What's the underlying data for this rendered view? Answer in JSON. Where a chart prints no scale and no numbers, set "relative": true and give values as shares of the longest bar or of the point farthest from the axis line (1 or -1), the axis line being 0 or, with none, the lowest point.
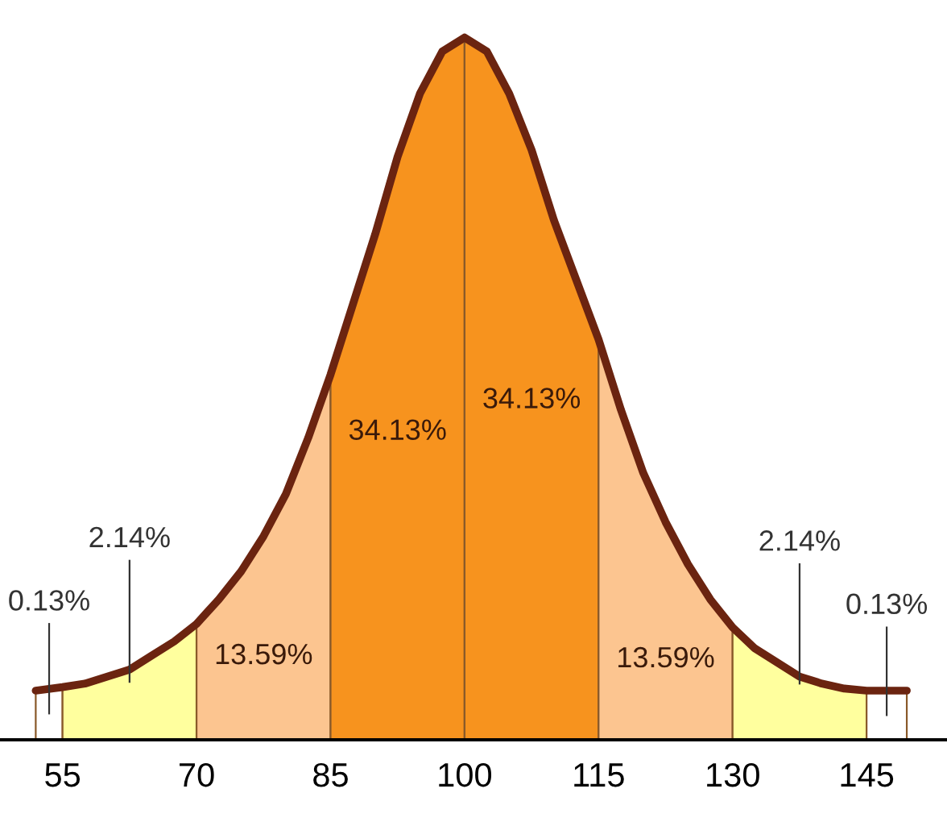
{
  "chart_data": {
    "type": "area",
    "relative": true,
    "xlim": [
      48,
      154
    ],
    "xticks": [
      55,
      70,
      85,
      100,
      115,
      130,
      145
    ],
    "series": [
      {
        "name": "0.13%",
        "color": "#ffffff",
        "x": [
          52,
          55
        ],
        "values": [
          0.07,
          0.075
        ]
      },
      {
        "name": "2.14%",
        "color": "#ffff9e",
        "x": [
          55,
          57.5,
          60,
          62.5,
          65,
          67.5,
          70
        ],
        "values": [
          0.075,
          0.08,
          0.09,
          0.1,
          0.12,
          0.14,
          0.165
        ]
      },
      {
        "name": "13.59%",
        "color": "#fcc590",
        "x": [
          70,
          72.5,
          75,
          77.5,
          80,
          82.5,
          85
        ],
        "values": [
          0.165,
          0.2,
          0.24,
          0.29,
          0.35,
          0.43,
          0.52
        ]
      },
      {
        "name": "34.13%",
        "color": "#f7931e",
        "x": [
          85,
          87.5,
          90,
          92.5,
          95,
          97.5,
          100
        ],
        "values": [
          0.52,
          0.62,
          0.72,
          0.83,
          0.92,
          0.98,
          1.0
        ]
      },
      {
        "name": "34.13%",
        "color": "#f7931e",
        "x": [
          100,
          102.5,
          105,
          107.5,
          110,
          112.5,
          115
        ],
        "values": [
          1.0,
          0.98,
          0.92,
          0.84,
          0.74,
          0.655,
          0.57
        ]
      },
      {
        "name": "13.59%",
        "color": "#fcc590",
        "x": [
          115,
          117.5,
          120,
          122.5,
          125,
          127.5,
          130
        ],
        "values": [
          0.57,
          0.47,
          0.38,
          0.31,
          0.25,
          0.2,
          0.16
        ]
      },
      {
        "name": "2.14%",
        "color": "#ffff9e",
        "x": [
          130,
          132.5,
          135,
          137.5,
          140,
          142.5,
          145
        ],
        "values": [
          0.16,
          0.13,
          0.11,
          0.09,
          0.08,
          0.073,
          0.07
        ]
      },
      {
        "name": "0.13%",
        "color": "#ffffff",
        "x": [
          145,
          149.5
        ],
        "values": [
          0.07,
          0.07
        ]
      },
      {
        "type": "line",
        "color": "#6b2410",
        "x": [
          52,
          55,
          57.5,
          60,
          62.5,
          65,
          67.5,
          70,
          72.5,
          75,
          77.5,
          80,
          82.5,
          85,
          87.5,
          90,
          92.5,
          95,
          97.5,
          100,
          102.5,
          105,
          107.5,
          110,
          112.5,
          115,
          117.5,
          120,
          122.5,
          125,
          127.5,
          130,
          132.5,
          135,
          137.5,
          140,
          142.5,
          145,
          149.5
        ],
        "values": [
          0.07,
          0.075,
          0.08,
          0.09,
          0.1,
          0.12,
          0.14,
          0.165,
          0.2,
          0.24,
          0.29,
          0.35,
          0.43,
          0.52,
          0.62,
          0.72,
          0.83,
          0.92,
          0.98,
          1.0,
          0.98,
          0.92,
          0.84,
          0.74,
          0.655,
          0.57,
          0.47,
          0.38,
          0.31,
          0.25,
          0.2,
          0.16,
          0.13,
          0.11,
          0.09,
          0.08,
          0.073,
          0.07,
          0.07
        ]
      }
    ]
  }
}
